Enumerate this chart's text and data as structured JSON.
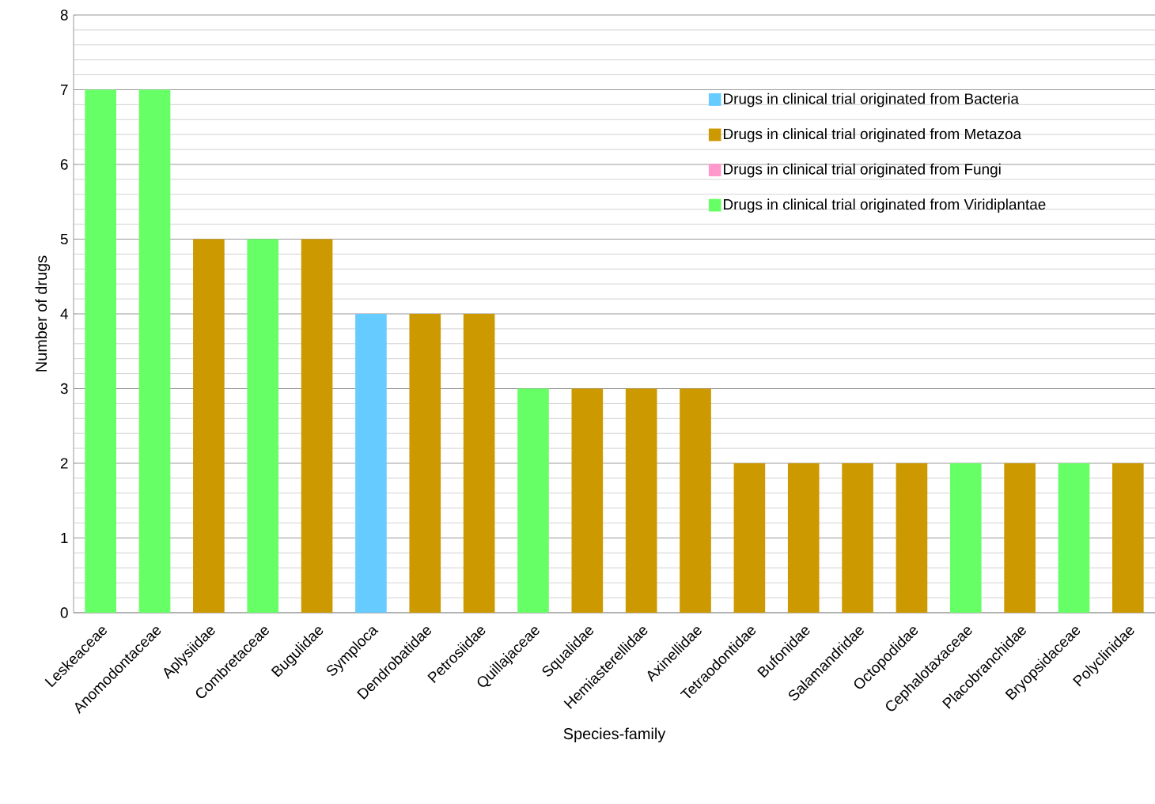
{
  "chart_data": {
    "type": "bar",
    "xlabel": "Species-family",
    "ylabel": "Number of drugs",
    "categories": [
      "Leskeaceae",
      "Anomodontaceae",
      "Aplysiidae",
      "Combretaceae",
      "Bugulidae",
      "Symploca",
      "Dendrobatidae",
      "Petrosiidae",
      "Quillajaceae",
      "Squalidae",
      "Hemiasterellidae",
      "Axinellidae",
      "Tetraodontidae",
      "Bufonidae",
      "Salamandridae",
      "Octopodidae",
      "Cephalotaxaceae",
      "Placobranchidae",
      "Bryopsidaceae",
      "Polyclinidae"
    ],
    "series": [
      {
        "name": "Drugs in clinical trial originated from Bacteria",
        "color": "#66ccff",
        "values": [
          null,
          null,
          null,
          null,
          null,
          4,
          null,
          null,
          null,
          null,
          null,
          null,
          null,
          null,
          null,
          null,
          null,
          null,
          null,
          null
        ]
      },
      {
        "name": "Drugs in clinical trial originated from Metazoa",
        "color": "#cc9900",
        "values": [
          null,
          null,
          5,
          null,
          5,
          null,
          4,
          4,
          null,
          3,
          3,
          3,
          2,
          2,
          2,
          2,
          null,
          2,
          null,
          2
        ]
      },
      {
        "name": "Drugs in clinical trial originated from Fungi",
        "color": "#ff99cc",
        "values": [
          null,
          null,
          null,
          null,
          null,
          null,
          null,
          null,
          null,
          null,
          null,
          null,
          null,
          null,
          null,
          null,
          null,
          null,
          null,
          null
        ]
      },
      {
        "name": "Drugs in clinical trial originated from Viridiplantae",
        "color": "#66ff66",
        "values": [
          7,
          7,
          null,
          5,
          null,
          null,
          null,
          null,
          3,
          null,
          null,
          null,
          null,
          null,
          null,
          null,
          2,
          null,
          2,
          null
        ]
      }
    ],
    "ylim": [
      0,
      8
    ],
    "yticks": [
      0,
      1,
      2,
      3,
      4,
      5,
      6,
      7,
      8
    ],
    "grid": "y",
    "legend": "top right"
  }
}
